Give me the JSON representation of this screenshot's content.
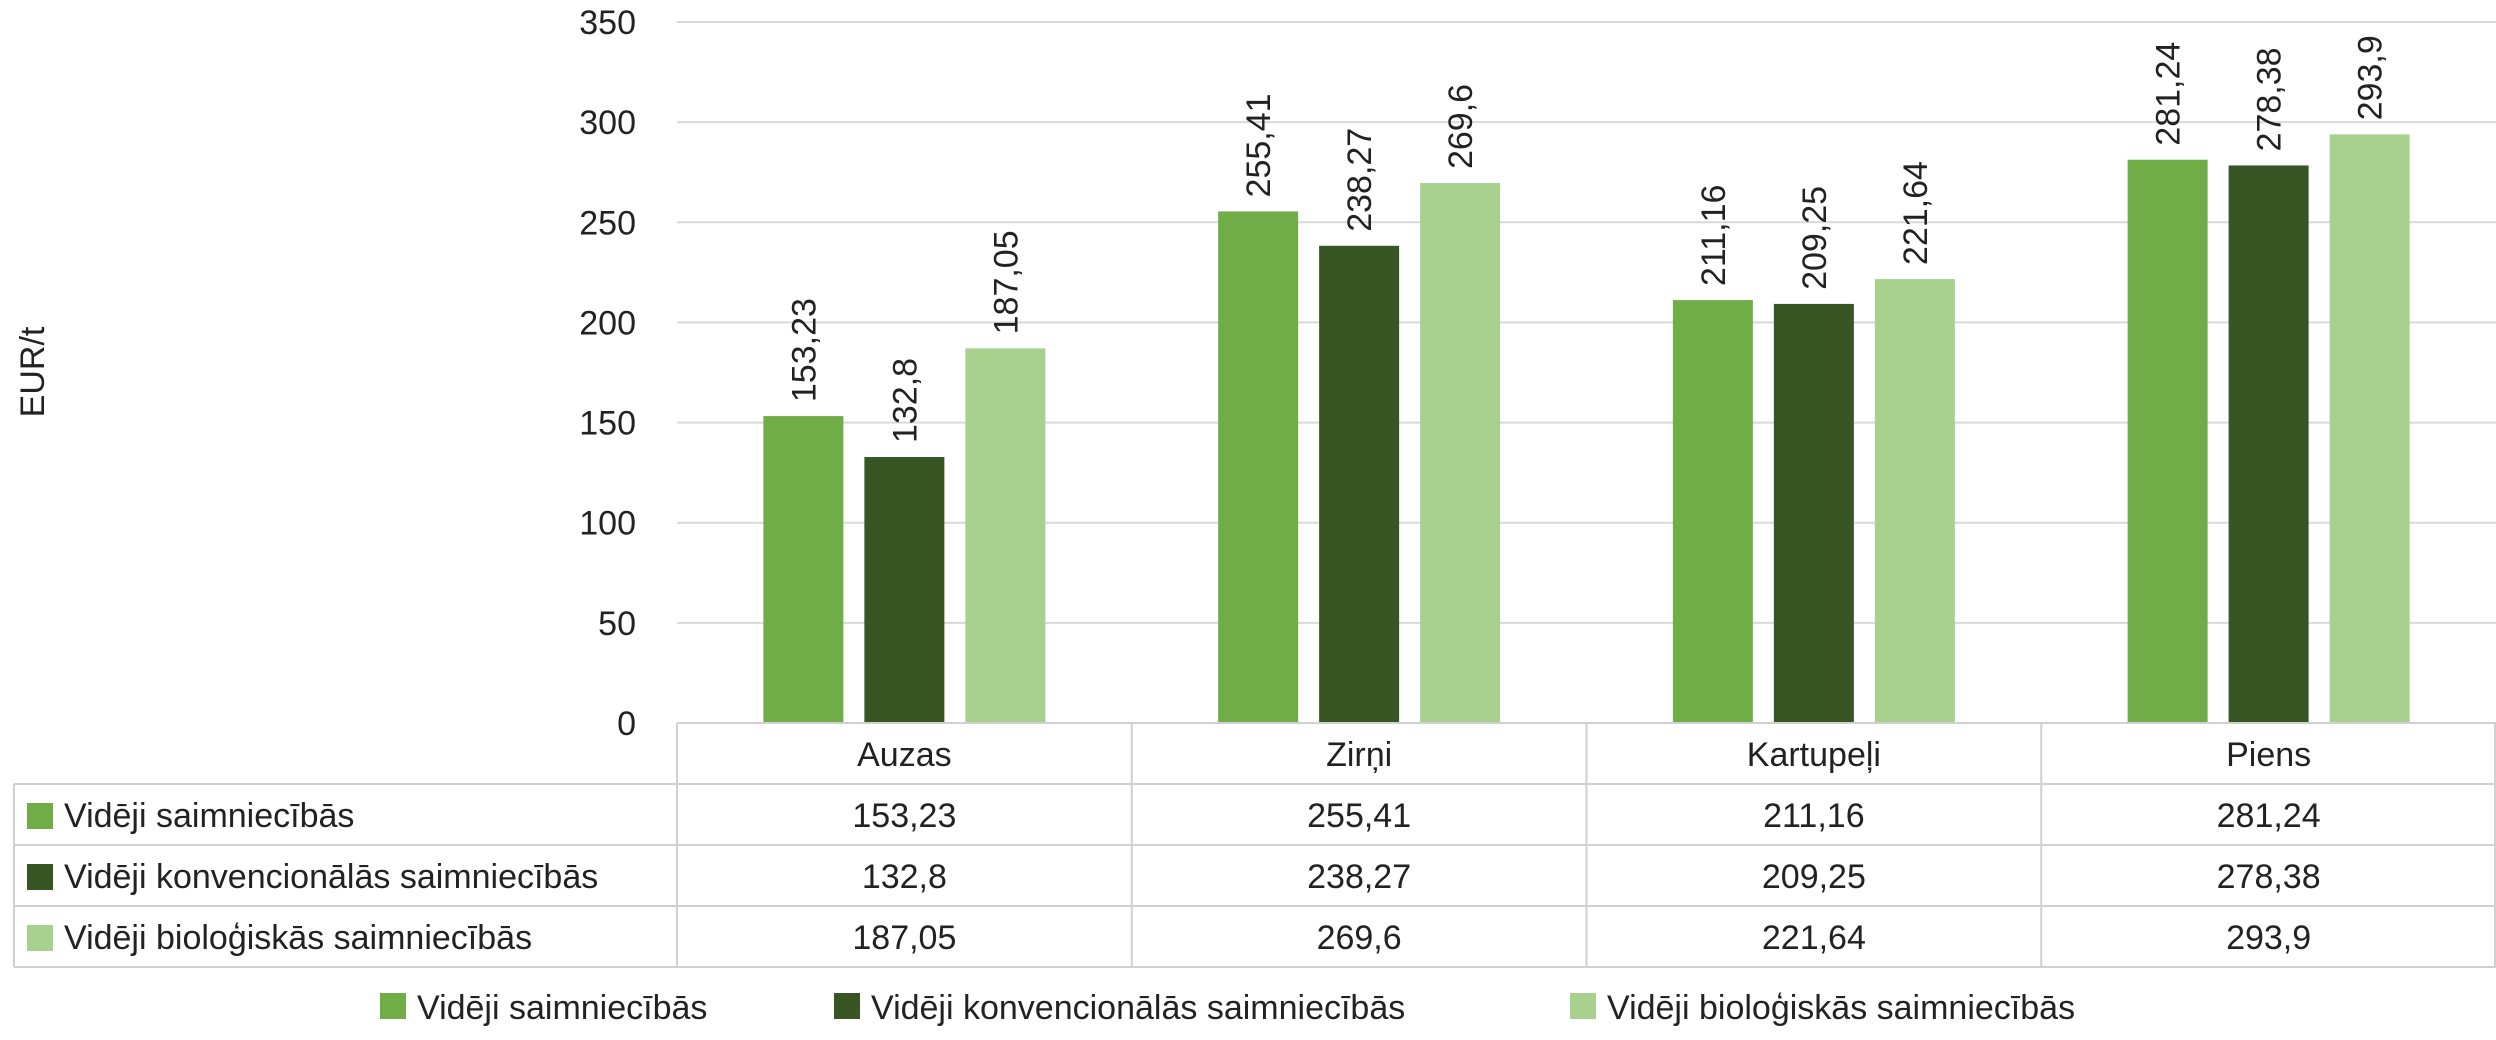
{
  "chart_data": {
    "type": "bar",
    "ylabel": "EUR/t",
    "ylim": [
      0,
      350
    ],
    "yticks": [
      "0",
      "50",
      "100",
      "150",
      "200",
      "250",
      "300",
      "350"
    ],
    "grid": true,
    "legend_position": "bottom",
    "categories": [
      "Auzas",
      "Zirņi",
      "Kartupeļi",
      "Piens"
    ],
    "series": [
      {
        "name": "Vidēji saimniecībās",
        "color": "#70ad47",
        "values": [
          153.23,
          255.41,
          211.16,
          281.24
        ],
        "labels": [
          "153,23",
          "255,41",
          "211,16",
          "281,24"
        ]
      },
      {
        "name": "Vidēji konvencionālās saimniecībās",
        "color": "#375623",
        "values": [
          132.8,
          238.27,
          209.25,
          278.38
        ],
        "labels": [
          "132,8",
          "238,27",
          "209,25",
          "278,38"
        ]
      },
      {
        "name": "Vidēji bioloģiskās saimniecībās",
        "color": "#a9d18e",
        "values": [
          187.05,
          269.6,
          221.64,
          293.9
        ],
        "labels": [
          "187,05",
          "269,6",
          "221,64",
          "293,9"
        ]
      }
    ]
  }
}
